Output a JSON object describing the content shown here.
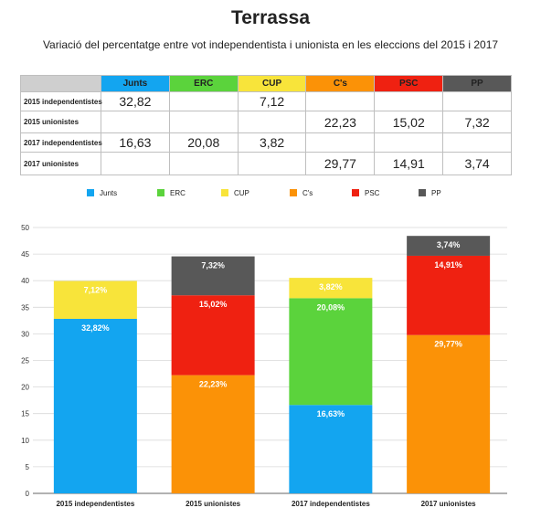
{
  "title": "Terrassa",
  "subtitle": "Variació del percentatge entre vot independentista i unionista en les eleccions del 2015 i 2017",
  "colors": {
    "Junts": "#13a5f0",
    "ERC": "#5bd33c",
    "CUP": "#f8e43a",
    "C's": "#fb9207",
    "PSC": "#ef2111",
    "PP": "#585858"
  },
  "table": {
    "columns": [
      "Junts",
      "ERC",
      "CUP",
      "C's",
      "PSC",
      "PP"
    ],
    "rows": [
      {
        "label": "2015 independentistes",
        "cells": [
          "32,82",
          "",
          "7,12",
          "",
          "",
          ""
        ]
      },
      {
        "label": "2015 unionistes",
        "cells": [
          "",
          "",
          "",
          "22,23",
          "15,02",
          "7,32"
        ]
      },
      {
        "label": "2017 independentistes",
        "cells": [
          "16,63",
          "20,08",
          "3,82",
          "",
          "",
          ""
        ]
      },
      {
        "label": "2017 unionistes",
        "cells": [
          "",
          "",
          "",
          "29,77",
          "14,91",
          "3,74"
        ]
      }
    ]
  },
  "chart_data": {
    "type": "bar",
    "stacked": true,
    "categories": [
      "2015 independentistes",
      "2015 unionistes",
      "2017 independentistes",
      "2017 unionistes"
    ],
    "series": [
      {
        "name": "Junts",
        "values": [
          32.82,
          0,
          16.63,
          0
        ],
        "labels": [
          "32,82%",
          "",
          "16,63%",
          ""
        ]
      },
      {
        "name": "ERC",
        "values": [
          0,
          0,
          20.08,
          0
        ],
        "labels": [
          "",
          "",
          "20,08%",
          ""
        ]
      },
      {
        "name": "CUP",
        "values": [
          7.12,
          0,
          3.82,
          0
        ],
        "labels": [
          "7,12%",
          "",
          "3,82%",
          ""
        ]
      },
      {
        "name": "C's",
        "values": [
          0,
          22.23,
          0,
          29.77
        ],
        "labels": [
          "",
          "22,23%",
          "",
          "29,77%"
        ]
      },
      {
        "name": "PSC",
        "values": [
          0,
          15.02,
          0,
          14.91
        ],
        "labels": [
          "",
          "15,02%",
          "",
          "14,91%"
        ]
      },
      {
        "name": "PP",
        "values": [
          0,
          7.32,
          0,
          3.74
        ],
        "labels": [
          "",
          "7,32%",
          "",
          "3,74%"
        ]
      }
    ],
    "ylim": [
      0,
      50
    ],
    "yticks": [
      0,
      5,
      10,
      15,
      20,
      25,
      30,
      35,
      40,
      45,
      50
    ],
    "grid": true,
    "legend": "top"
  }
}
